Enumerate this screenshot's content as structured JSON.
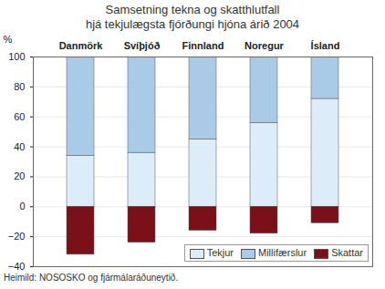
{
  "chart_data": {
    "type": "bar",
    "title": "Samsetning tekna og skatthlutfall",
    "subtitle": "hjá tekjulægsta fjórðungi hjóna árið 2004",
    "ylabel": "%",
    "caption": "Heimild: NOSOSKO og fjármálaráðuneytið.",
    "categories": [
      "Danmörk",
      "Svíþjóð",
      "Finnland",
      "Noregur",
      "Ísland"
    ],
    "series": [
      {
        "name": "Tekjur",
        "color": "#dcecf8",
        "values": [
          34,
          36,
          45,
          56,
          72
        ]
      },
      {
        "name": "Millifærslur",
        "color": "#a9cbe8",
        "values": [
          66,
          64,
          55,
          44,
          28
        ]
      },
      {
        "name": "Skattar",
        "color": "#7a1018",
        "values": [
          -32,
          -24,
          -16,
          -18,
          -11
        ]
      }
    ],
    "stacked": true,
    "ylim": [
      -40,
      100
    ],
    "yticks": [
      -40,
      -20,
      0,
      20,
      40,
      60,
      80,
      100
    ],
    "grid": true,
    "legend": "bottom right"
  }
}
